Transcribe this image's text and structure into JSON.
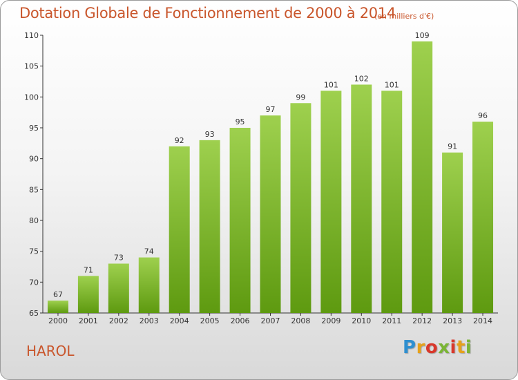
{
  "title": "Dotation Globale de Fonctionnement de 2000 à 2014",
  "subtitle": "(en milliers d'€)",
  "commune": "HAROL",
  "logo_text": "Proxiti",
  "colors": {
    "title": "#c9562c",
    "bar_light": "#9ed04e",
    "bar_dark": "#5e9a10",
    "axis": "#333333",
    "grid": "#d0d0d0"
  },
  "chart_data": {
    "type": "bar",
    "title": "Dotation Globale de Fonctionnement de 2000 à 2014",
    "subtitle": "(en milliers d'€)",
    "categories": [
      "2000",
      "2001",
      "2002",
      "2003",
      "2004",
      "2005",
      "2006",
      "2007",
      "2008",
      "2009",
      "2010",
      "2011",
      "2012",
      "2013",
      "2014"
    ],
    "values": [
      67,
      71,
      73,
      74,
      92,
      93,
      95,
      97,
      99,
      101,
      102,
      101,
      109,
      91,
      96
    ],
    "ylim": [
      65,
      110
    ],
    "yticks": [
      65,
      70,
      75,
      80,
      85,
      90,
      95,
      100,
      105,
      110
    ],
    "xlabel": "",
    "ylabel": "",
    "grid": false,
    "legend": "none"
  }
}
